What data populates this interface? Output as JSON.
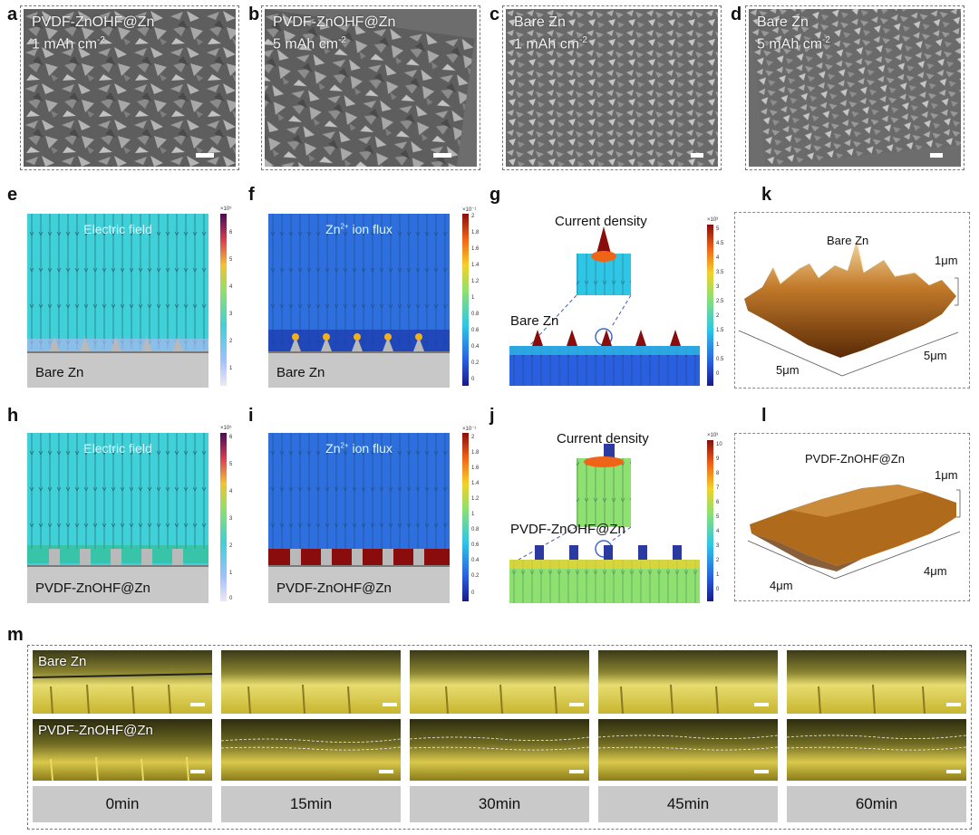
{
  "panels": {
    "a": "a",
    "b": "b",
    "c": "c",
    "d": "d",
    "e": "e",
    "f": "f",
    "g": "g",
    "h": "h",
    "i": "i",
    "j": "j",
    "k": "k",
    "l": "l",
    "m": "m"
  },
  "sem": [
    {
      "line1": "PVDF-ZnOHF@Zn",
      "line2_main": "1 mAh cm",
      "line2_sup": "-2"
    },
    {
      "line1": "PVDF-ZnOHF@Zn",
      "line2_main": "5 mAh cm",
      "line2_sup": "-2"
    },
    {
      "line1": "Bare Zn",
      "line2_main": "1 mAh cm",
      "line2_sup": "-2"
    },
    {
      "line1": "Bare Zn",
      "line2_main": "5 mAh cm",
      "line2_sup": "-2"
    }
  ],
  "sim": {
    "e": {
      "title": "Electric field",
      "substrate": "Bare Zn",
      "scale_exp": "×10⁵",
      "ticks": [
        "6",
        "5",
        "4",
        "3",
        "2",
        "1"
      ]
    },
    "f": {
      "title_main": "Zn",
      "title_sup": "2+",
      "title_rest": " ion flux",
      "substrate": "Bare Zn",
      "scale_exp": "×10⁻¹",
      "ticks": [
        "2",
        "1.8",
        "1.6",
        "1.4",
        "1.2",
        "1",
        "0.8",
        "0.6",
        "0.4",
        "0.2",
        "0"
      ]
    },
    "g": {
      "title": "Current density",
      "substrate": "Bare Zn",
      "scale_exp": "×10³",
      "ticks": [
        "5",
        "4.5",
        "4",
        "3.5",
        "3",
        "2.5",
        "2",
        "1.5",
        "1",
        "0.5",
        "0"
      ]
    },
    "h": {
      "title": "Electric field",
      "substrate": "PVDF-ZnOHF@Zn",
      "scale_exp": "×10⁵",
      "ticks": [
        "6",
        "5",
        "4",
        "3",
        "2",
        "1",
        "0"
      ]
    },
    "i": {
      "title_main": "Zn",
      "title_sup": "2+",
      "title_rest": " ion flux",
      "substrate": "PVDF-ZnOHF@Zn",
      "scale_exp": "×10⁻¹",
      "ticks": [
        "2",
        "1.8",
        "1.6",
        "1.4",
        "1.2",
        "1",
        "0.8",
        "0.6",
        "0.4",
        "0.2",
        "0"
      ]
    },
    "j": {
      "title": "Current density",
      "substrate": "PVDF-ZnOHF@Zn",
      "scale_exp": "×10³",
      "ticks": [
        "10",
        "9",
        "8",
        "7",
        "6",
        "5",
        "4",
        "3",
        "2",
        "1",
        "0"
      ]
    }
  },
  "afm": {
    "k": {
      "title": "Bare Zn",
      "z": "1μm",
      "x": "5μm",
      "y": "5μm"
    },
    "l": {
      "title": "PVDF-ZnOHF@Zn",
      "z": "1μm",
      "x": "4μm",
      "y": "4μm"
    }
  },
  "optical": {
    "row_labels": [
      "Bare Zn",
      "PVDF-ZnOHF@Zn"
    ],
    "times": [
      "0min",
      "15min",
      "30min",
      "45min",
      "60min"
    ]
  },
  "colors": {
    "sim_field": "#3fd0d8",
    "sim_flux": "#2e6fe0",
    "afm_brown": "#a55a12",
    "optical_yellow": "#d8c43a"
  }
}
